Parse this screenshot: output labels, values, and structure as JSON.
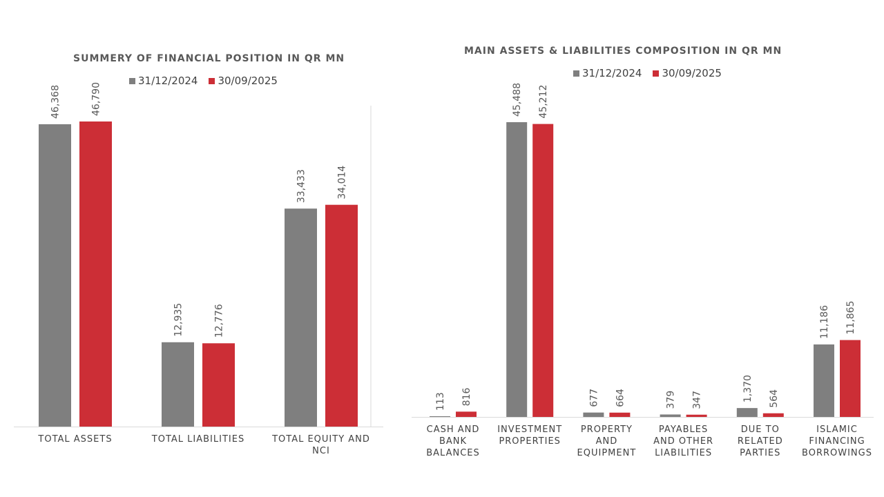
{
  "colors": {
    "series1": "#7f7f7f",
    "series2": "#cc2e36",
    "axis": "#d9d9d9"
  },
  "chart_data": [
    {
      "type": "bar",
      "title": "SUMMERY OF FINANCIAL POSITION IN QR MN",
      "categories": [
        "TOTAL ASSETS",
        "TOTAL LIABILITIES",
        "TOTAL EQUITY AND\nNCI"
      ],
      "series": [
        {
          "name": "31/12/2024",
          "values": [
            46368,
            12935,
            33433
          ],
          "labels": [
            "46,368",
            "12,935",
            "33,433"
          ]
        },
        {
          "name": "30/09/2025",
          "values": [
            46790,
            12776,
            34014
          ],
          "labels": [
            "46,790",
            "12,776",
            "34,014"
          ]
        }
      ],
      "legend": "top",
      "ylim": [
        0,
        50000
      ],
      "grid": false
    },
    {
      "type": "bar",
      "title": "MAIN ASSETS & LIABILITIES COMPOSITION IN QR MN",
      "categories": [
        "CASH AND\nBANK\nBALANCES",
        "INVESTMENT\nPROPERTIES",
        "PROPERTY\nAND\nEQUIPMENT",
        "PAYABLES\nAND OTHER\nLIABILITIES",
        "DUE TO\nRELATED\nPARTIES",
        "ISLAMIC\nFINANCING\nBORROWINGS"
      ],
      "series": [
        {
          "name": "31/12/2024",
          "values": [
            113,
            45488,
            677,
            379,
            1370,
            11186
          ],
          "labels": [
            "113",
            "45,488",
            "677",
            "379",
            "1,370",
            "11,186"
          ]
        },
        {
          "name": "30/09/2025",
          "values": [
            816,
            45212,
            664,
            347,
            564,
            11865
          ],
          "labels": [
            "816",
            "45,212",
            "664",
            "347",
            "564",
            "11,865"
          ]
        }
      ],
      "legend": "top",
      "ylim": [
        0,
        50000
      ],
      "grid": false
    }
  ]
}
